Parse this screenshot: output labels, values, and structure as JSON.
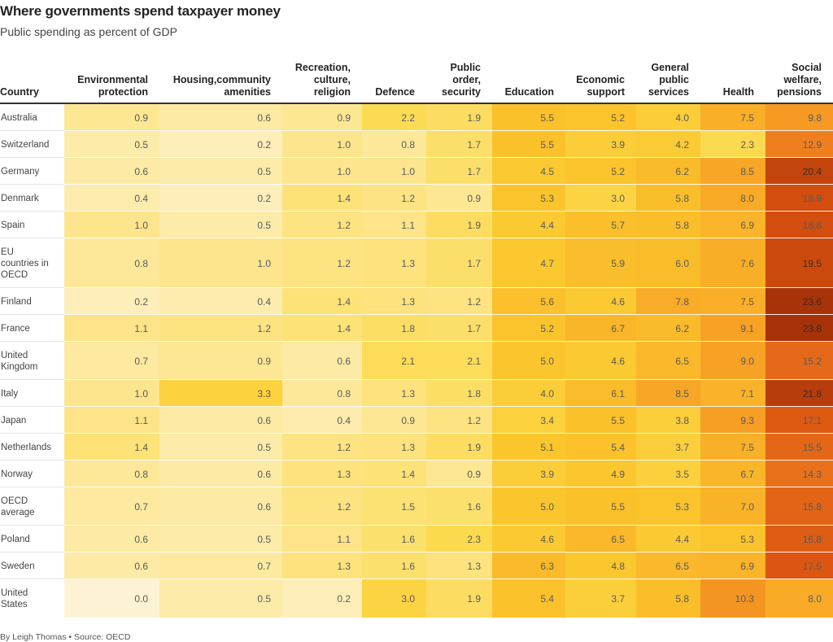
{
  "title": "Where governments spend taxpayer money",
  "subtitle": "Public spending as percent of GDP",
  "footer": "By Leigh Thomas • Source: OECD",
  "chart_data": {
    "type": "heatmap",
    "title": "Where governments spend taxpayer money",
    "subtitle": "Public spending as percent of GDP",
    "row_header": "Country",
    "columns": [
      {
        "label": "Environmental\nprotection"
      },
      {
        "label": "Housing,community\namenities"
      },
      {
        "label": "Recreation,\nculture,\nreligion"
      },
      {
        "label": "Defence"
      },
      {
        "label": "Public\norder,\nsecurity"
      },
      {
        "label": "Education"
      },
      {
        "label": "Economic\nsupport"
      },
      {
        "label": "General\npublic\nservices"
      },
      {
        "label": "Health"
      },
      {
        "label": "Social\nwelfare,\npensions"
      }
    ],
    "rows": [
      {
        "country": "Australia",
        "values": [
          0.9,
          0.6,
          0.9,
          2.2,
          1.9,
          5.5,
          5.2,
          4.0,
          7.5,
          9.8
        ]
      },
      {
        "country": "Switzerland",
        "values": [
          0.5,
          0.2,
          1.0,
          0.8,
          1.7,
          5.5,
          3.9,
          4.2,
          2.3,
          12.9
        ]
      },
      {
        "country": "Germany",
        "values": [
          0.6,
          0.5,
          1.0,
          1.0,
          1.7,
          4.5,
          5.2,
          6.2,
          8.5,
          20.4
        ]
      },
      {
        "country": "Denmark",
        "values": [
          0.4,
          0.2,
          1.4,
          1.2,
          0.9,
          5.3,
          3.0,
          5.8,
          8.0,
          18.9
        ]
      },
      {
        "country": "Spain",
        "values": [
          1.0,
          0.5,
          1.2,
          1.1,
          1.9,
          4.4,
          5.7,
          5.8,
          6.9,
          18.8
        ]
      },
      {
        "country": "EU\ncountries in\nOECD",
        "values": [
          0.8,
          1.0,
          1.2,
          1.3,
          1.7,
          4.7,
          5.9,
          6.0,
          7.6,
          19.5
        ]
      },
      {
        "country": "Finland",
        "values": [
          0.2,
          0.4,
          1.4,
          1.3,
          1.2,
          5.6,
          4.6,
          7.8,
          7.5,
          23.6
        ]
      },
      {
        "country": "France",
        "values": [
          1.1,
          1.2,
          1.4,
          1.8,
          1.7,
          5.2,
          6.7,
          6.2,
          9.1,
          23.8
        ]
      },
      {
        "country": "United\nKingdom",
        "values": [
          0.7,
          0.9,
          0.6,
          2.1,
          2.1,
          5.0,
          4.6,
          6.5,
          9.0,
          15.2
        ]
      },
      {
        "country": "Italy",
        "values": [
          1.0,
          3.3,
          0.8,
          1.3,
          1.8,
          4.0,
          6.1,
          8.5,
          7.1,
          21.8
        ]
      },
      {
        "country": "Japan",
        "values": [
          1.1,
          0.6,
          0.4,
          0.9,
          1.2,
          3.4,
          5.5,
          3.8,
          9.3,
          17.1
        ]
      },
      {
        "country": "Netherlands",
        "values": [
          1.4,
          0.5,
          1.2,
          1.3,
          1.9,
          5.1,
          5.4,
          3.7,
          7.5,
          15.5
        ]
      },
      {
        "country": "Norway",
        "values": [
          0.8,
          0.6,
          1.3,
          1.4,
          0.9,
          3.9,
          4.9,
          3.5,
          6.7,
          14.3
        ]
      },
      {
        "country": "OECD\naverage",
        "values": [
          0.7,
          0.6,
          1.2,
          1.5,
          1.6,
          5.0,
          5.5,
          5.3,
          7.0,
          15.8
        ]
      },
      {
        "country": "Poland",
        "values": [
          0.6,
          0.5,
          1.1,
          1.6,
          2.3,
          4.6,
          6.5,
          4.4,
          5.3,
          16.8
        ]
      },
      {
        "country": "Sweden",
        "values": [
          0.6,
          0.7,
          1.3,
          1.6,
          1.3,
          6.3,
          4.8,
          6.5,
          6.9,
          17.5
        ]
      },
      {
        "country": "United\nStates",
        "values": [
          0.0,
          0.5,
          0.2,
          3.0,
          1.9,
          5.4,
          3.7,
          5.8,
          10.3,
          8.0
        ]
      }
    ],
    "color_scale": [
      "#fdf3d4",
      "#fde9a0",
      "#fcd94a",
      "#fbc52c",
      "#f8a526",
      "#ef7d1f",
      "#d9510f",
      "#a5310a"
    ]
  }
}
